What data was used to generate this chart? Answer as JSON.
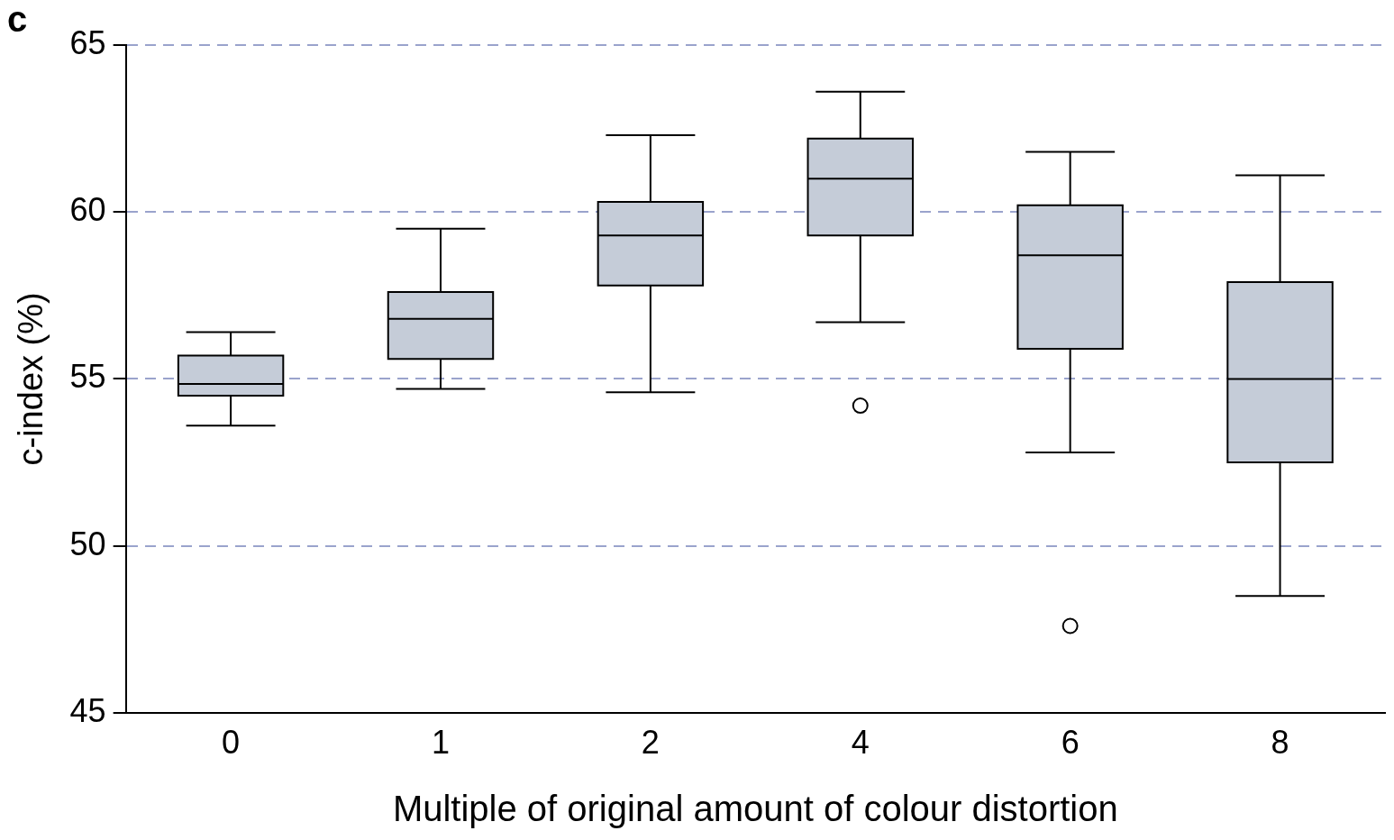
{
  "chart_data": {
    "type": "box",
    "xlabel": "Multiple of original amount of colour distortion",
    "ylabel": "c-index (%)",
    "annotations": [
      "c"
    ],
    "categories": [
      "0",
      "1",
      "2",
      "4",
      "6",
      "8"
    ],
    "boxes": [
      {
        "low": 53.6,
        "q1": 54.5,
        "median": 54.85,
        "q3": 55.7,
        "high": 56.4
      },
      {
        "low": 54.7,
        "q1": 55.6,
        "median": 56.8,
        "q3": 57.6,
        "high": 59.5
      },
      {
        "low": 54.6,
        "q1": 57.8,
        "median": 59.3,
        "q3": 60.3,
        "high": 62.3
      },
      {
        "low": 56.7,
        "q1": 59.3,
        "median": 61.0,
        "q3": 62.2,
        "high": 63.6,
        "outliers": [
          54.2
        ]
      },
      {
        "low": 52.8,
        "q1": 55.9,
        "median": 58.7,
        "q3": 60.2,
        "high": 61.8,
        "outliers": [
          47.6
        ]
      },
      {
        "low": 48.5,
        "q1": 52.5,
        "median": 55.0,
        "q3": 57.9,
        "high": 61.1
      }
    ],
    "color": "#c5ccd8",
    "ylim": [
      45,
      65
    ],
    "yticks": [
      45,
      50,
      55,
      60,
      65
    ],
    "grid": "y",
    "legend": false
  }
}
